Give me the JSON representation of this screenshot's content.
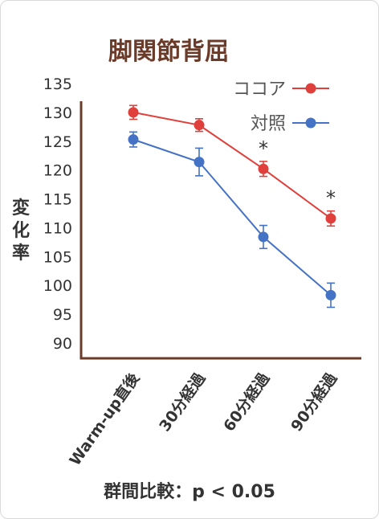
{
  "chart_data": {
    "type": "line",
    "title": "脚関節背屈",
    "ylabel": "変化率",
    "categories": [
      "Warm-up直後",
      "30分経過",
      "60分経過",
      "90分経過"
    ],
    "ylim": [
      90,
      135
    ],
    "yticks": [
      90,
      95,
      100,
      105,
      110,
      115,
      120,
      125,
      130,
      135
    ],
    "series": [
      {
        "name": "ココア",
        "color": "#e0403b",
        "values": [
          130,
          127.8,
          120.2,
          111.6
        ],
        "errors": [
          1.2,
          1.1,
          1.3,
          1.3
        ],
        "significant": [
          false,
          false,
          true,
          true
        ]
      },
      {
        "name": "対照",
        "color": "#4472c4",
        "values": [
          125.3,
          121.4,
          108.4,
          98.3
        ],
        "errors": [
          1.3,
          2.4,
          2.0,
          2.1
        ],
        "significant": [
          false,
          false,
          false,
          false
        ]
      }
    ],
    "significance_mark": "*",
    "legend_position": "top-right",
    "footnote": "群間比較：p < 0.05"
  }
}
